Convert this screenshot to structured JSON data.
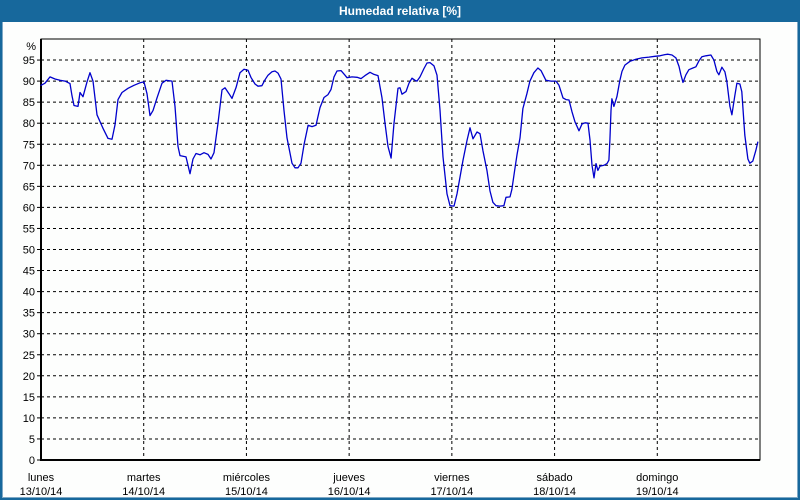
{
  "window": {
    "title": "Humedad relativa [%]",
    "titlebar_color": "#17689c",
    "border_color": "#17689c",
    "background_color": "#fdfefd"
  },
  "chart_data": {
    "type": "line",
    "title": "Humedad relativa [%]",
    "unit_label": "%",
    "ylim": [
      0,
      100
    ],
    "y_ticks": [
      0,
      5,
      10,
      15,
      20,
      25,
      30,
      35,
      40,
      45,
      50,
      55,
      60,
      65,
      70,
      75,
      80,
      85,
      90,
      95
    ],
    "grid": "dashed",
    "legend": "none",
    "line_color": "#0000cc",
    "grid_color": "#000000",
    "axis_color": "#000000",
    "x_range_days": [
      0,
      7
    ],
    "x_categories": [
      {
        "label": "lunes",
        "date": "13/10/14"
      },
      {
        "label": "martes",
        "date": "14/10/14"
      },
      {
        "label": "miércoles",
        "date": "15/10/14"
      },
      {
        "label": "jueves",
        "date": "16/10/14"
      },
      {
        "label": "viernes",
        "date": "17/10/14"
      },
      {
        "label": "sábado",
        "date": "18/10/14"
      },
      {
        "label": "domingo",
        "date": "19/10/14"
      }
    ],
    "series": [
      {
        "name": "Humedad relativa",
        "color": "#0000cc",
        "points": [
          [
            0,
            89
          ],
          [
            0.039,
            89.5
          ],
          [
            0.088,
            91
          ],
          [
            0.136,
            90.5
          ],
          [
            0.185,
            90.2
          ],
          [
            0.234,
            90
          ],
          [
            0.282,
            89.4
          ],
          [
            0.302,
            86.5
          ],
          [
            0.321,
            84.2
          ],
          [
            0.36,
            84
          ],
          [
            0.38,
            87.3
          ],
          [
            0.409,
            86.3
          ],
          [
            0.448,
            89.8
          ],
          [
            0.477,
            92
          ],
          [
            0.506,
            90
          ],
          [
            0.545,
            82
          ],
          [
            0.604,
            78.8
          ],
          [
            0.652,
            76.4
          ],
          [
            0.691,
            76.2
          ],
          [
            0.72,
            79.6
          ],
          [
            0.75,
            85.6
          ],
          [
            0.789,
            87.3
          ],
          [
            0.847,
            88.3
          ],
          [
            0.905,
            89
          ],
          [
            0.964,
            89.6
          ],
          [
            1.003,
            89.8
          ],
          [
            1.032,
            87
          ],
          [
            1.061,
            81.8
          ],
          [
            1.09,
            83
          ],
          [
            1.129,
            86
          ],
          [
            1.178,
            89.5
          ],
          [
            1.217,
            90.2
          ],
          [
            1.275,
            90
          ],
          [
            1.305,
            84
          ],
          [
            1.334,
            74.5
          ],
          [
            1.353,
            72.3
          ],
          [
            1.412,
            72
          ],
          [
            1.451,
            68
          ],
          [
            1.48,
            71.5
          ],
          [
            1.509,
            72.8
          ],
          [
            1.548,
            72.5
          ],
          [
            1.587,
            73
          ],
          [
            1.626,
            72.6
          ],
          [
            1.655,
            71.5
          ],
          [
            1.684,
            73
          ],
          [
            1.723,
            80
          ],
          [
            1.762,
            87.9
          ],
          [
            1.791,
            88.4
          ],
          [
            1.83,
            87
          ],
          [
            1.86,
            85.9
          ],
          [
            1.899,
            88.5
          ],
          [
            1.937,
            92
          ],
          [
            1.976,
            92.8
          ],
          [
            2.015,
            92.6
          ],
          [
            2.044,
            90.9
          ],
          [
            2.083,
            89.3
          ],
          [
            2.113,
            88.8
          ],
          [
            2.151,
            88.9
          ],
          [
            2.181,
            90.3
          ],
          [
            2.21,
            91.4
          ],
          [
            2.249,
            92.2
          ],
          [
            2.278,
            92.4
          ],
          [
            2.307,
            91.9
          ],
          [
            2.337,
            90.5
          ],
          [
            2.366,
            83
          ],
          [
            2.395,
            76.5
          ],
          [
            2.444,
            70.5
          ],
          [
            2.473,
            69.4
          ],
          [
            2.502,
            69.4
          ],
          [
            2.531,
            70.5
          ],
          [
            2.561,
            75
          ],
          [
            2.6,
            79.5
          ],
          [
            2.638,
            79.2
          ],
          [
            2.677,
            79.5
          ],
          [
            2.716,
            83.7
          ],
          [
            2.755,
            86.1
          ],
          [
            2.794,
            86.8
          ],
          [
            2.823,
            88
          ],
          [
            2.853,
            91
          ],
          [
            2.882,
            92.4
          ],
          [
            2.921,
            92.5
          ],
          [
            2.96,
            91.4
          ],
          [
            2.979,
            90.8
          ],
          [
            3.028,
            91
          ],
          [
            3.077,
            90.9
          ],
          [
            3.115,
            90.6
          ],
          [
            3.154,
            91.3
          ],
          [
            3.203,
            92.1
          ],
          [
            3.242,
            91.6
          ],
          [
            3.281,
            91.3
          ],
          [
            3.32,
            86
          ],
          [
            3.349,
            80
          ],
          [
            3.378,
            74.5
          ],
          [
            3.408,
            71.7
          ],
          [
            3.437,
            80
          ],
          [
            3.476,
            88.3
          ],
          [
            3.495,
            88.4
          ],
          [
            3.515,
            86.9
          ],
          [
            3.554,
            87.5
          ],
          [
            3.583,
            89.5
          ],
          [
            3.612,
            90.7
          ],
          [
            3.641,
            90.2
          ],
          [
            3.661,
            90
          ],
          [
            3.69,
            91
          ],
          [
            3.729,
            93
          ],
          [
            3.758,
            94.3
          ],
          [
            3.787,
            94.4
          ],
          [
            3.826,
            93.6
          ],
          [
            3.855,
            91.4
          ],
          [
            3.885,
            83.1
          ],
          [
            3.914,
            72
          ],
          [
            3.953,
            63.2
          ],
          [
            3.982,
            60.4
          ],
          [
            4.021,
            60.3
          ],
          [
            4.05,
            63.2
          ],
          [
            4.079,
            67.2
          ],
          [
            4.108,
            71.2
          ],
          [
            4.147,
            75.9
          ],
          [
            4.177,
            78.9
          ],
          [
            4.206,
            76.3
          ],
          [
            4.245,
            77.9
          ],
          [
            4.274,
            77.5
          ],
          [
            4.303,
            73.4
          ],
          [
            4.342,
            68.7
          ],
          [
            4.371,
            63.9
          ],
          [
            4.4,
            61.2
          ],
          [
            4.43,
            60.4
          ],
          [
            4.468,
            60.3
          ],
          [
            4.507,
            60.4
          ],
          [
            4.527,
            62.4
          ],
          [
            4.566,
            62.5
          ],
          [
            4.585,
            64.3
          ],
          [
            4.614,
            69.2
          ],
          [
            4.634,
            72.5
          ],
          [
            4.663,
            76.5
          ],
          [
            4.692,
            83.5
          ],
          [
            4.731,
            87
          ],
          [
            4.76,
            90
          ],
          [
            4.799,
            92
          ],
          [
            4.838,
            93.1
          ],
          [
            4.868,
            92.5
          ],
          [
            4.916,
            90.2
          ],
          [
            4.965,
            90
          ],
          [
            5.014,
            90
          ],
          [
            5.043,
            89
          ],
          [
            5.082,
            86
          ],
          [
            5.111,
            85.6
          ],
          [
            5.14,
            85.5
          ],
          [
            5.17,
            82.7
          ],
          [
            5.199,
            80.3
          ],
          [
            5.238,
            78.2
          ],
          [
            5.267,
            79.8
          ],
          [
            5.296,
            80.1
          ],
          [
            5.325,
            80
          ],
          [
            5.345,
            76
          ],
          [
            5.364,
            70
          ],
          [
            5.384,
            67
          ],
          [
            5.403,
            70.4
          ],
          [
            5.422,
            68.8
          ],
          [
            5.442,
            69.8
          ],
          [
            5.481,
            70
          ],
          [
            5.51,
            70.4
          ],
          [
            5.529,
            71.2
          ],
          [
            5.539,
            76
          ],
          [
            5.549,
            83
          ],
          [
            5.558,
            85.8
          ],
          [
            5.578,
            84
          ],
          [
            5.607,
            86.3
          ],
          [
            5.636,
            90.2
          ],
          [
            5.656,
            92.3
          ],
          [
            5.685,
            93.8
          ],
          [
            5.734,
            94.7
          ],
          [
            5.792,
            95.2
          ],
          [
            5.85,
            95.5
          ],
          [
            5.919,
            95.7
          ],
          [
            5.977,
            95.9
          ],
          [
            6.026,
            96
          ],
          [
            6.074,
            96.3
          ],
          [
            6.104,
            96.4
          ],
          [
            6.143,
            96.2
          ],
          [
            6.181,
            95.5
          ],
          [
            6.211,
            93.5
          ],
          [
            6.23,
            91.5
          ],
          [
            6.25,
            89.7
          ],
          [
            6.279,
            91.5
          ],
          [
            6.308,
            92.7
          ],
          [
            6.347,
            93.1
          ],
          [
            6.376,
            93.4
          ],
          [
            6.405,
            94.8
          ],
          [
            6.434,
            95.8
          ],
          [
            6.473,
            96
          ],
          [
            6.522,
            96.2
          ],
          [
            6.551,
            95
          ],
          [
            6.58,
            92.3
          ],
          [
            6.6,
            91.5
          ],
          [
            6.629,
            93.3
          ],
          [
            6.658,
            92.2
          ],
          [
            6.677,
            90
          ],
          [
            6.707,
            84
          ],
          [
            6.726,
            82
          ],
          [
            6.755,
            86.5
          ],
          [
            6.775,
            89.5
          ],
          [
            6.804,
            89.3
          ],
          [
            6.823,
            87.5
          ],
          [
            6.852,
            77.2
          ],
          [
            6.882,
            71.5
          ],
          [
            6.901,
            70.5
          ],
          [
            6.93,
            71
          ],
          [
            6.959,
            73.5
          ],
          [
            6.979,
            75.5
          ]
        ]
      }
    ]
  }
}
